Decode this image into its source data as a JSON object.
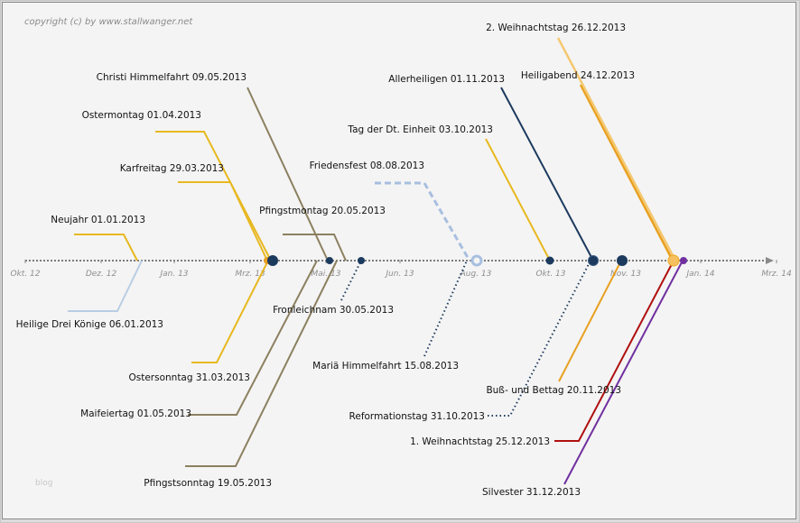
{
  "copyright": "copyright (c) by www.stallwanger.net",
  "watermark": "blog",
  "axis": {
    "start": "2012-10-01",
    "end": "2014-03-01",
    "ticks": [
      {
        "label": "Okt. 12",
        "date": "2012-10-01"
      },
      {
        "label": "Dez. 12",
        "date": "2012-12-01"
      },
      {
        "label": "Jan. 13",
        "date": "2013-01-01"
      },
      {
        "label": "Mrz. 13",
        "date": "2013-03-01"
      },
      {
        "label": "Mai. 13",
        "date": "2013-05-01"
      },
      {
        "label": "Jun. 13",
        "date": "2013-06-01"
      },
      {
        "label": "Aug. 13",
        "date": "2013-08-01"
      },
      {
        "label": "Okt. 13",
        "date": "2013-10-01"
      },
      {
        "label": "Nov. 13",
        "date": "2013-11-01"
      },
      {
        "label": "Jan. 14",
        "date": "2014-01-01"
      },
      {
        "label": "Mrz. 14",
        "date": "2014-03-01"
      }
    ]
  },
  "events": [
    {
      "name": "Neujahr",
      "date": "01.01.2013",
      "color": "#e8b820",
      "side": "above",
      "style": "solid"
    },
    {
      "name": "Heilige Drei Könige",
      "date": "06.01.2013",
      "color": "#b8cde4",
      "side": "below",
      "style": "solid"
    },
    {
      "name": "Karfreitag",
      "date": "29.03.2013",
      "color": "#e8b820",
      "side": "above",
      "style": "solid"
    },
    {
      "name": "Ostersonntag",
      "date": "31.03.2013",
      "color": "#e8b820",
      "side": "below",
      "style": "solid"
    },
    {
      "name": "Ostermontag",
      "date": "01.04.2013",
      "color": "#e8b820",
      "side": "above",
      "style": "solid"
    },
    {
      "name": "Maifeiertag",
      "date": "01.05.2013",
      "color": "#8c8060",
      "side": "below",
      "style": "solid"
    },
    {
      "name": "Christi Himmelfahrt",
      "date": "09.05.2013",
      "color": "#8c8060",
      "side": "above",
      "style": "solid"
    },
    {
      "name": "Pfingstsonntag",
      "date": "19.05.2013",
      "color": "#8c8060",
      "side": "below",
      "style": "solid"
    },
    {
      "name": "Pfingstmontag",
      "date": "20.05.2013",
      "color": "#8c8060",
      "side": "above",
      "style": "solid"
    },
    {
      "name": "Fronleichnam",
      "date": "30.05.2013",
      "color": "#1c3a5e",
      "side": "below",
      "style": "dotted"
    },
    {
      "name": "Friedensfest",
      "date": "08.08.2013",
      "color": "#a8bfe0",
      "side": "above",
      "style": "dashed"
    },
    {
      "name": "Mariä Himmelfahrt",
      "date": "15.08.2013",
      "color": "#1c3a5e",
      "side": "below",
      "style": "dotted"
    },
    {
      "name": "Tag der Dt. Einheit",
      "date": "03.10.2013",
      "color": "#e8b820",
      "side": "above",
      "style": "solid"
    },
    {
      "name": "Reformationstag",
      "date": "31.10.2013",
      "color": "#1c3a5e",
      "side": "below",
      "style": "dotted"
    },
    {
      "name": "Allerheiligen",
      "date": "01.11.2013",
      "color": "#1c3a5e",
      "side": "above",
      "style": "solid"
    },
    {
      "name": "Buß- und Bettag",
      "date": "20.11.2013",
      "color": "#e8a020",
      "side": "below",
      "style": "solid"
    },
    {
      "name": "Heiligabend",
      "date": "24.12.2013",
      "color": "#e8a020",
      "side": "above",
      "style": "solid"
    },
    {
      "name": "1. Weihnachtstag",
      "date": "25.12.2013",
      "color": "#b01010",
      "side": "below",
      "style": "solid"
    },
    {
      "name": "2. Weihnachtstag",
      "date": "26.12.2013",
      "color": "#f4c870",
      "side": "above",
      "style": "solid"
    },
    {
      "name": "Silvester",
      "date": "31.12.2013",
      "color": "#7030a0",
      "side": "below",
      "style": "solid"
    }
  ]
}
